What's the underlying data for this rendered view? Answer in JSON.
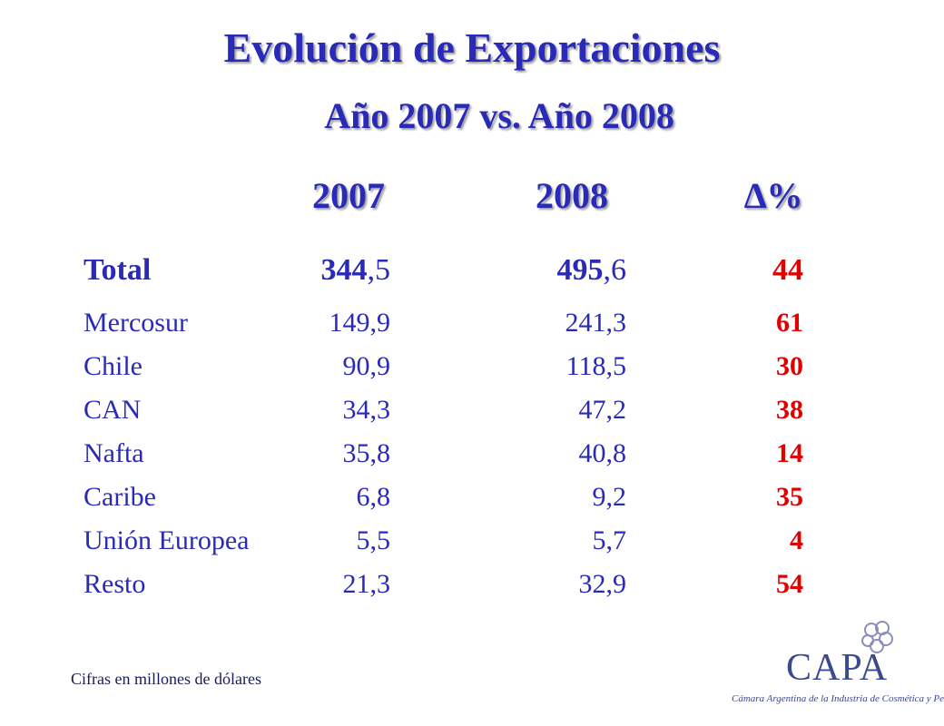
{
  "title": "Evolución de Exportaciones",
  "subtitle": "Año 2007  vs.  Año 2008",
  "headers": {
    "col2007": "2007",
    "col2008": "2008",
    "delta": "∆%"
  },
  "total": {
    "label": "Total",
    "v2007_int": "344",
    "v2007_dec": ",5",
    "v2008_int": "495",
    "v2008_dec": ",6",
    "delta": "44"
  },
  "rows": [
    {
      "label": "Mercosur",
      "v2007": "149,9",
      "v2008": "241,3",
      "delta": "61"
    },
    {
      "label": "Chile",
      "v2007": "90,9",
      "v2008": "118,5",
      "delta": "30"
    },
    {
      "label": "CAN",
      "v2007": "34,3",
      "v2008": "47,2",
      "delta": "38"
    },
    {
      "label": "Nafta",
      "v2007": "35,8",
      "v2008": "40,8",
      "delta": "14"
    },
    {
      "label": "Caribe",
      "v2007": "6,8",
      "v2008": "9,2",
      "delta": "35"
    },
    {
      "label": "Unión Europea",
      "v2007": "5,5",
      "v2008": "5,7",
      "delta": "4"
    },
    {
      "label": "Resto",
      "v2007": "21,3",
      "v2008": "32,9",
      "delta": "54"
    }
  ],
  "footnote": "Cifras en millones de dólares",
  "logo": {
    "name": "CAPA",
    "tagline": "Cámara Argentina de la Industria de Cosmética y Perfumería"
  },
  "colors": {
    "title": "#2a2ab8",
    "text": "#2a2ab8",
    "delta": "#e00000",
    "logo": "#3b4a8f"
  }
}
